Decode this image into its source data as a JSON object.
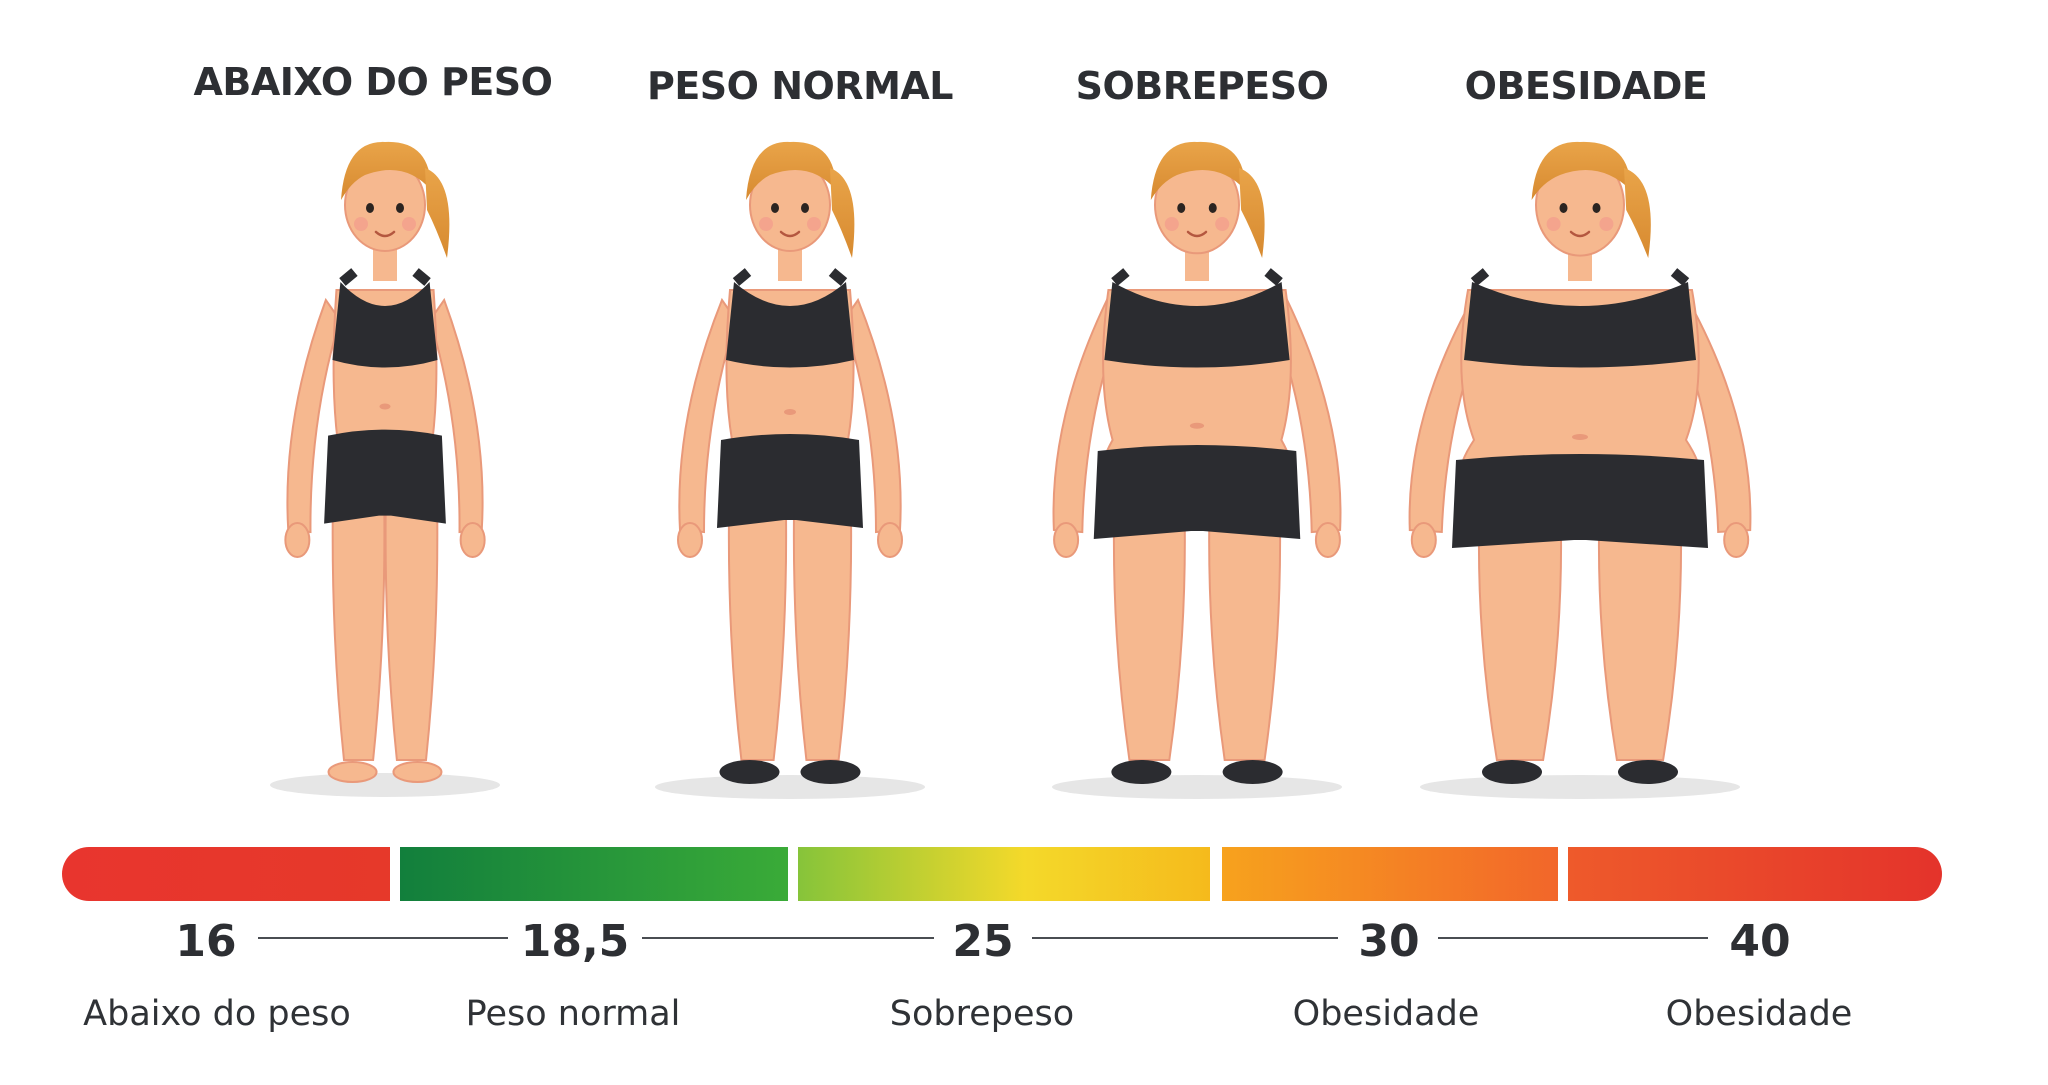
{
  "categories": [
    {
      "title": "ABAIXO DO PESO",
      "figure": "underweight-woman"
    },
    {
      "title": "PESO NORMAL",
      "figure": "normal-weight-woman"
    },
    {
      "title": "SOBREPESO",
      "figure": "overweight-woman"
    },
    {
      "title": "OBESIDADE",
      "figure": "obese-woman"
    }
  ],
  "scale": {
    "ticks": [
      "16",
      "18,5",
      "25",
      "30",
      "40"
    ],
    "labels": [
      "Abaixo do peso",
      "Peso normal",
      "Sobrepeso",
      "Obesidade",
      "Obesidade"
    ],
    "segment_colors": [
      "#e8352e",
      "#2e9b3a",
      "#f4d92a",
      "#f7892a",
      "#e9412b"
    ]
  }
}
